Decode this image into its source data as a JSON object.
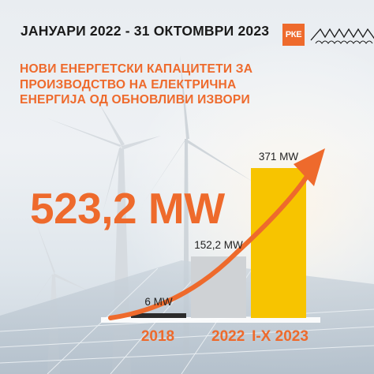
{
  "header": {
    "date_range": "ЈАНУАРИ 2022 - 31 ОКТОМВРИ 2023"
  },
  "logo": {
    "text": "РКЕ",
    "icon": "wave-icon",
    "accent": "#ee6a2c"
  },
  "title_lines": [
    "НОВИ ЕНЕРГЕТСКИ КАПАЦИТЕТИ ЗА",
    "ПРОИЗВОДСТВО НА ЕЛЕКТРИЧНА",
    "ЕНЕРГИЈА ОД ОБНОВЛИВИ ИЗВОРИ"
  ],
  "highlight": {
    "total_label": "523,2 MW"
  },
  "colors": {
    "accent": "#ee6a2c",
    "bar_2018": "#2b2b2b",
    "bar_2022": "#cfd2d5",
    "bar_2023": "#f7c400",
    "trend": "#ee6a2c"
  },
  "chart_data": {
    "type": "bar",
    "categories": [
      "2018",
      "2022",
      "I-X 2023"
    ],
    "values": [
      6,
      152.2,
      371
    ],
    "data_labels": [
      "6 MW",
      "152,2 MW",
      "371 MW"
    ],
    "category_labels": [
      "2018",
      "2022",
      "I-X 2023"
    ],
    "unit": "MW",
    "title": "",
    "xlabel": "",
    "ylabel": "",
    "grid": false,
    "legend": "none"
  }
}
